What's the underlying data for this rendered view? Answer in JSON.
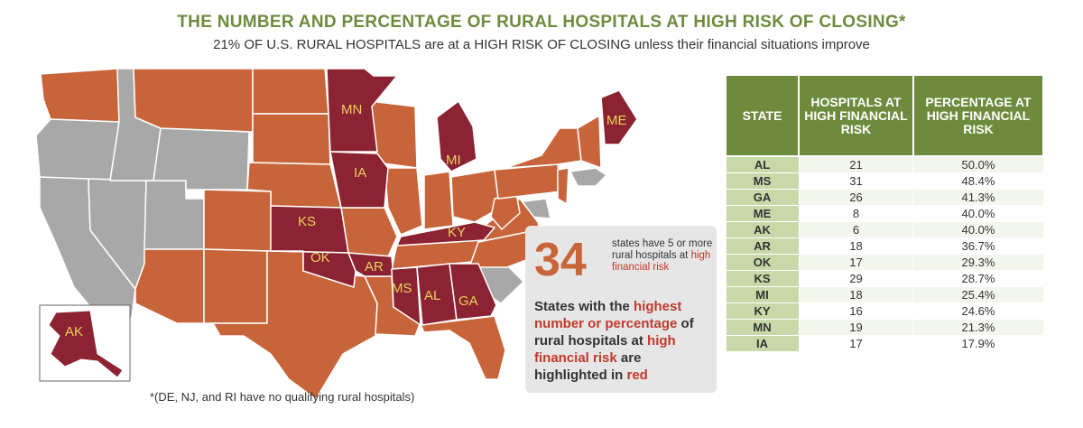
{
  "header": {
    "title": "THE NUMBER AND PERCENTAGE OF RURAL HOSPITALS AT HIGH RISK OF CLOSING*",
    "subtitle": "21% OF U.S. RURAL HOSPITALS are at a HIGH RISK OF CLOSING unless their financial situations improve"
  },
  "colors": {
    "highlight": "#8c2332",
    "orange": "#c8643a",
    "gray": "#a8a8a8",
    "green": "#6e8b3d",
    "label": "#e8d25a"
  },
  "map": {
    "labels": [
      "MN",
      "ME",
      "MI",
      "IA",
      "KS",
      "KY",
      "OK",
      "AR",
      "MS",
      "AL",
      "GA",
      "AK"
    ],
    "footnote": "*(DE, NJ, and RI have no qualifying rural hospitals)"
  },
  "callout": {
    "count": "34",
    "count_desc_1": "states have 5 or more rural hospitals at ",
    "count_desc_hl": "high financial risk",
    "text_1": "States with the ",
    "text_hl_1": "highest number or percentage",
    "text_2": " of rural hospitals at ",
    "text_hl_2": "high financial risk",
    "text_3": " are highlighted in ",
    "text_hl_3": "red"
  },
  "table": {
    "headers": [
      "STATE",
      "HOSPITALS AT HIGH FINANCIAL RISK",
      "PERCENTAGE AT HIGH FINANCIAL RISK"
    ],
    "rows": [
      [
        "AL",
        "21",
        "50.0%"
      ],
      [
        "MS",
        "31",
        "48.4%"
      ],
      [
        "GA",
        "26",
        "41.3%"
      ],
      [
        "ME",
        "8",
        "40.0%"
      ],
      [
        "AK",
        "6",
        "40.0%"
      ],
      [
        "AR",
        "18",
        "36.7%"
      ],
      [
        "OK",
        "17",
        "29.3%"
      ],
      [
        "KS",
        "29",
        "28.7%"
      ],
      [
        "MI",
        "18",
        "25.4%"
      ],
      [
        "KY",
        "16",
        "24.6%"
      ],
      [
        "MN",
        "19",
        "21.3%"
      ],
      [
        "IA",
        "17",
        "17.9%"
      ]
    ]
  }
}
